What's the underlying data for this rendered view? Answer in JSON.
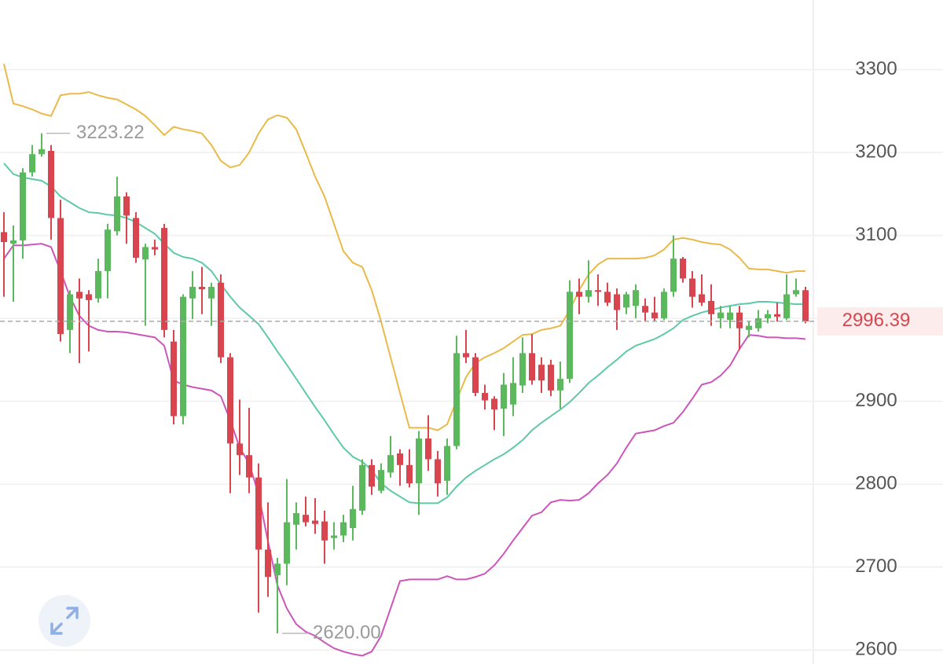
{
  "chart_data": {
    "type": "candlestick",
    "ylim": [
      2583,
      3384
    ],
    "yticks": [
      2600,
      2700,
      2800,
      2900,
      3000,
      3100,
      3200,
      3300
    ],
    "up_color": "#5cb85c",
    "down_color": "#d9454f",
    "open": [
      3104,
      3090,
      3094,
      3176,
      3198,
      3202,
      3121,
      2986,
      3032,
      3029,
      3024,
      3057,
      3105,
      3147,
      3121,
      3071,
      3086,
      3109,
      2972,
      2882,
      3024,
      3038,
      3024,
      3043,
      2953,
      2849,
      2835,
      2808,
      2721,
      2690,
      2704,
      2751,
      2763,
      2756,
      2755,
      2735,
      2738,
      2747,
      2768,
      2823,
      2792,
      2814,
      2837,
      2823,
      2801,
      2855,
      2830,
      2804,
      2846,
      2958,
      2953,
      2910,
      2903,
      2891,
      2896,
      2919,
      2958,
      2944,
      2944,
      2913,
      2927,
      3032,
      3026,
      3034,
      3032,
      3029,
      3013,
      3015,
      3015,
      3007,
      3000,
      3032,
      3072,
      3048,
      3029,
      3021,
      3000,
      2998,
      3007,
      2986,
      2988,
      3000,
      3005,
      3000,
      3029,
      3034
    ],
    "high": [
      3128,
      3112,
      3181,
      3209,
      3223.22,
      3209,
      3143,
      3034,
      3048,
      3034,
      3072,
      3114,
      3171,
      3152,
      3128,
      3090,
      3095,
      3114,
      2986,
      3029,
      3057,
      3062,
      3043,
      3053,
      2958,
      2902,
      2892,
      2825,
      2778,
      2711,
      2806,
      2778,
      2785,
      2783,
      2768,
      2754,
      2763,
      2798,
      2830,
      2830,
      2825,
      2858,
      2842,
      2842,
      2864,
      2883,
      2840,
      2855,
      2979,
      2986,
      2958,
      2920,
      2906,
      2934,
      2953,
      2977,
      2981,
      2953,
      2950,
      2948,
      3046,
      3048,
      3070,
      3053,
      3043,
      3036,
      3032,
      3041,
      3024,
      3026,
      3036,
      3100,
      3074,
      3057,
      3053,
      3041,
      3015,
      3015,
      3015,
      2996,
      3010,
      3010,
      3019,
      3053,
      3048,
      3038
    ],
    "low": [
      3026,
      3020,
      3072,
      3171,
      3195,
      3095,
      2972,
      2958,
      2946,
      2960,
      3019,
      3024,
      3100,
      3090,
      3067,
      2991,
      3076,
      2977,
      2872,
      2872,
      2999,
      3005,
      2991,
      2946,
      2789,
      2811,
      2789,
      2645,
      2664,
      2620,
      2678,
      2721,
      2749,
      2740,
      2704,
      2721,
      2730,
      2732,
      2763,
      2787,
      2789,
      2808,
      2798,
      2796,
      2763,
      2816,
      2785,
      2787,
      2842,
      2946,
      2906,
      2890,
      2865,
      2858,
      2882,
      2910,
      2920,
      2910,
      2906,
      2891,
      2922,
      3005,
      3019,
      3015,
      3015,
      2986,
      3005,
      3000,
      2996,
      2996,
      2998,
      3026,
      3043,
      3013,
      3015,
      2991,
      2988,
      2988,
      2962,
      2977,
      2984,
      2994,
      2996,
      2998,
      3026,
      2994
    ],
    "close": [
      3092,
      3094,
      3176,
      3198,
      3204,
      3121,
      2981,
      3029,
      3024,
      3022,
      3057,
      3107,
      3147,
      3124,
      3073,
      3086,
      3083,
      2986,
      2882,
      3026,
      3038,
      3035,
      3038,
      2953,
      2849,
      2835,
      2808,
      2721,
      2688,
      2704,
      2754,
      2765,
      2754,
      2752,
      2732,
      2738,
      2754,
      2770,
      2823,
      2797,
      2817,
      2835,
      2823,
      2801,
      2855,
      2830,
      2801,
      2846,
      2958,
      2953,
      2910,
      2901,
      2890,
      2920,
      2922,
      2958,
      2925,
      2925,
      2913,
      2927,
      3032,
      3026,
      3034,
      3032,
      3019,
      3010,
      3029,
      3034,
      3007,
      3000,
      3032,
      3072,
      3048,
      3026,
      3019,
      3005,
      3007,
      3007,
      2988,
      2991,
      3000,
      3005,
      3002,
      3029,
      3034,
      2996.39
    ],
    "lines": [
      {
        "color": "#e9b949",
        "values": [
          3307,
          3259,
          3256,
          3252,
          3247,
          3244,
          3269,
          3271,
          3271,
          3273,
          3269,
          3266,
          3264,
          3258,
          3252,
          3244,
          3233,
          3221,
          3231,
          3228,
          3226,
          3223,
          3209,
          3190,
          3182,
          3185,
          3200,
          3223,
          3240,
          3245,
          3242,
          3228,
          3200,
          3171,
          3147,
          3114,
          3081,
          3067,
          3062,
          3034,
          2996,
          2953,
          2910,
          2868,
          2868,
          2868,
          2865,
          2872,
          2901,
          2929,
          2946,
          2953,
          2958,
          2964,
          2972,
          2980,
          2981,
          2986,
          2988,
          2991,
          3010,
          3034,
          3053,
          3065,
          3072,
          3072,
          3072,
          3072,
          3073,
          3076,
          3083,
          3095,
          3097,
          3095,
          3092,
          3090,
          3089,
          3083,
          3073,
          3060,
          3059,
          3059,
          3057,
          3055,
          3057,
          3057
        ]
      },
      {
        "color": "#5ec9a8",
        "values": [
          3187,
          3174,
          3170,
          3168,
          3166,
          3159,
          3147,
          3140,
          3133,
          3128,
          3127,
          3125,
          3124,
          3121,
          3116,
          3109,
          3102,
          3090,
          3079,
          3074,
          3072,
          3067,
          3057,
          3041,
          3026,
          3013,
          3003,
          2993,
          2977,
          2960,
          2944,
          2927,
          2910,
          2893,
          2877,
          2860,
          2844,
          2833,
          2827,
          2817,
          2801,
          2792,
          2785,
          2778,
          2777,
          2777,
          2777,
          2784,
          2797,
          2808,
          2816,
          2823,
          2830,
          2836,
          2844,
          2853,
          2865,
          2874,
          2882,
          2890,
          2899,
          2910,
          2922,
          2931,
          2941,
          2950,
          2960,
          2967,
          2971,
          2975,
          2981,
          2988,
          2998,
          3003,
          3007,
          3010,
          3013,
          3015,
          3017,
          3018,
          3020,
          3020,
          3019,
          3018,
          3017,
          3017
        ]
      },
      {
        "color": "#cc55bb",
        "values": [
          3072,
          3088,
          3088,
          3089,
          3090,
          3086,
          3057,
          3026,
          3003,
          2991,
          2986,
          2984,
          2984,
          2983,
          2981,
          2979,
          2977,
          2967,
          2925,
          2920,
          2917,
          2915,
          2913,
          2906,
          2877,
          2844,
          2825,
          2788,
          2731,
          2678,
          2650,
          2631,
          2622,
          2617,
          2609,
          2602,
          2598,
          2595,
          2593,
          2598,
          2617,
          2650,
          2683,
          2685,
          2685,
          2685,
          2685,
          2689,
          2685,
          2685,
          2688,
          2692,
          2702,
          2716,
          2732,
          2747,
          2762,
          2766,
          2778,
          2781,
          2780,
          2781,
          2789,
          2801,
          2811,
          2825,
          2844,
          2861,
          2863,
          2865,
          2870,
          2874,
          2887,
          2903,
          2920,
          2923,
          2931,
          2943,
          2963,
          2980,
          2979,
          2977,
          2977,
          2976,
          2976,
          2975
        ]
      }
    ],
    "high_label": 3223.22,
    "low_label": {
      "value": 2620,
      "label": "2620.00"
    },
    "last": 2996.39
  }
}
